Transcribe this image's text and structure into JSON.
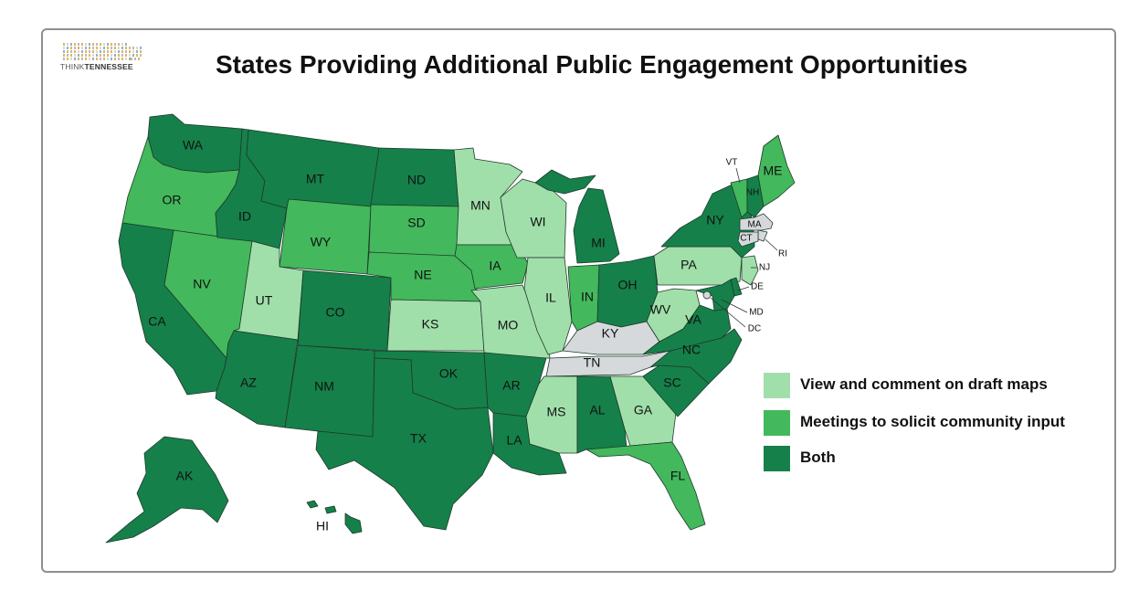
{
  "title": "States Providing Additional Public Engagement Opportunities",
  "logo": {
    "prefix": "THINK",
    "name": "TENNESSEE"
  },
  "colors": {
    "view": "#a1dfaa",
    "meetings": "#43b85c",
    "both": "#15804a",
    "none": "#d5d9dc",
    "border": "#8a8f94"
  },
  "legend": [
    {
      "key": "view",
      "label": "View and comment on draft maps"
    },
    {
      "key": "meetings",
      "label": "Meetings to solicit community input"
    },
    {
      "key": "both",
      "label": "Both"
    }
  ],
  "states": [
    {
      "abbr": "WA",
      "category": "both"
    },
    {
      "abbr": "OR",
      "category": "meetings"
    },
    {
      "abbr": "CA",
      "category": "both"
    },
    {
      "abbr": "NV",
      "category": "meetings"
    },
    {
      "abbr": "ID",
      "category": "both"
    },
    {
      "abbr": "MT",
      "category": "both"
    },
    {
      "abbr": "WY",
      "category": "meetings"
    },
    {
      "abbr": "UT",
      "category": "view"
    },
    {
      "abbr": "AZ",
      "category": "both"
    },
    {
      "abbr": "CO",
      "category": "both"
    },
    {
      "abbr": "NM",
      "category": "both"
    },
    {
      "abbr": "ND",
      "category": "both"
    },
    {
      "abbr": "SD",
      "category": "meetings"
    },
    {
      "abbr": "NE",
      "category": "meetings"
    },
    {
      "abbr": "KS",
      "category": "view"
    },
    {
      "abbr": "OK",
      "category": "both"
    },
    {
      "abbr": "TX",
      "category": "both"
    },
    {
      "abbr": "MN",
      "category": "view"
    },
    {
      "abbr": "IA",
      "category": "meetings"
    },
    {
      "abbr": "MO",
      "category": "view"
    },
    {
      "abbr": "AR",
      "category": "both"
    },
    {
      "abbr": "LA",
      "category": "both"
    },
    {
      "abbr": "WI",
      "category": "view"
    },
    {
      "abbr": "IL",
      "category": "view"
    },
    {
      "abbr": "MI",
      "category": "both"
    },
    {
      "abbr": "IN",
      "category": "meetings"
    },
    {
      "abbr": "OH",
      "category": "both"
    },
    {
      "abbr": "KY",
      "category": "none"
    },
    {
      "abbr": "TN",
      "category": "none"
    },
    {
      "abbr": "MS",
      "category": "view"
    },
    {
      "abbr": "AL",
      "category": "both"
    },
    {
      "abbr": "GA",
      "category": "view"
    },
    {
      "abbr": "FL",
      "category": "meetings"
    },
    {
      "abbr": "SC",
      "category": "both"
    },
    {
      "abbr": "NC",
      "category": "both"
    },
    {
      "abbr": "VA",
      "category": "both"
    },
    {
      "abbr": "WV",
      "category": "view"
    },
    {
      "abbr": "PA",
      "category": "view"
    },
    {
      "abbr": "NY",
      "category": "both"
    },
    {
      "abbr": "VT",
      "category": "meetings"
    },
    {
      "abbr": "NH",
      "category": "both"
    },
    {
      "abbr": "ME",
      "category": "meetings"
    },
    {
      "abbr": "MA",
      "category": "none"
    },
    {
      "abbr": "RI",
      "category": "none"
    },
    {
      "abbr": "CT",
      "category": "none"
    },
    {
      "abbr": "NJ",
      "category": "view"
    },
    {
      "abbr": "DE",
      "category": "both"
    },
    {
      "abbr": "MD",
      "category": "both"
    },
    {
      "abbr": "DC",
      "category": "none"
    },
    {
      "abbr": "AK",
      "category": "both"
    },
    {
      "abbr": "HI",
      "category": "both"
    }
  ]
}
